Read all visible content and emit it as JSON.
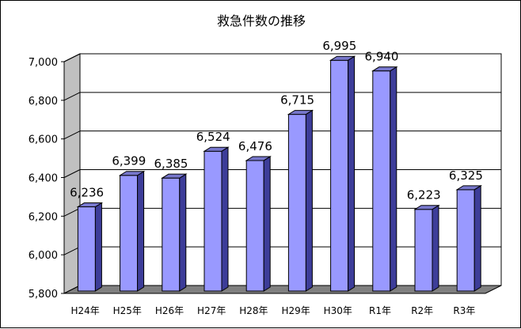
{
  "chart_data": {
    "type": "bar",
    "title": "救急件数の推移",
    "xlabel": "",
    "ylabel": "",
    "categories": [
      "H24年",
      "H25年",
      "H26年",
      "H27年",
      "H28年",
      "H29年",
      "H30年",
      "R1年",
      "R2年",
      "R3年"
    ],
    "values": [
      6236,
      6399,
      6385,
      6524,
      6476,
      6715,
      6995,
      6940,
      6223,
      6325
    ],
    "value_labels": [
      "6,236",
      "6,399",
      "6,385",
      "6,524",
      "6,476",
      "6,715",
      "6,995",
      "6,940",
      "6,223",
      "6,325"
    ],
    "ylim": [
      5800,
      7000
    ],
    "yticks": [
      5800,
      6000,
      6200,
      6400,
      6600,
      6800,
      7000
    ],
    "ytick_labels": [
      "5,800",
      "6,000",
      "6,200",
      "6,400",
      "6,600",
      "6,800",
      "7,000"
    ],
    "grid": true,
    "legend": "none",
    "style": "3d-bar",
    "colors": {
      "bar_front": "#9999ff",
      "bar_side": "#3d3d99",
      "bar_top": "#7777cc",
      "wall": "#ffffff",
      "wall_side": "#c0c0c0",
      "floor": "#808080",
      "gridline": "#000000"
    }
  }
}
